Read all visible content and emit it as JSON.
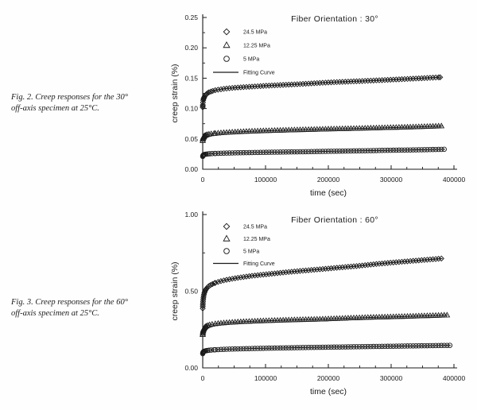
{
  "page": {
    "ink_color": "#1a1a1a",
    "background": "#fefefe"
  },
  "captions": {
    "fig2": {
      "line1": "Fig. 2.  Creep responses for the 30°",
      "line2": "off-axis specimen at 25°C."
    },
    "fig3": {
      "line1": "Fig. 3.  Creep responses for the 60°",
      "line2": "off-axis specimen at 25°C."
    }
  },
  "chart_data": [
    {
      "type": "scatter",
      "title": "Fiber Orientation : 30°",
      "xlabel": "time (sec)",
      "ylabel": "creep strain (%)",
      "xlim": [
        0,
        400000
      ],
      "ylim": [
        0,
        0.25
      ],
      "grid": false,
      "legend_position": "upper-left",
      "ink": "#1a1a1a",
      "x_ticks": {
        "values": [
          0,
          100000,
          200000,
          300000,
          400000
        ],
        "labels": [
          "0",
          "100000",
          "200000",
          "300000",
          "400000"
        ],
        "minor_step": 25000
      },
      "y_ticks": {
        "values": [
          0,
          0.05,
          0.1,
          0.15,
          0.2,
          0.25
        ],
        "labels": [
          "0.00",
          "0.05",
          "0.10",
          "0.15",
          "0.20",
          "0.25"
        ],
        "minor_step": 0.025
      },
      "legend": [
        {
          "marker": "diamond",
          "label": "24.5 MPa"
        },
        {
          "marker": "triangle",
          "label": "12.25 MPa"
        },
        {
          "marker": "circle",
          "label": "5 MPa"
        },
        {
          "marker": "line",
          "label": "Fitting Curve"
        }
      ],
      "series": [
        {
          "name": "24.5 MPa",
          "marker": "diamond",
          "points": [
            [
              0,
              0.102
            ],
            [
              100,
              0.104
            ],
            [
              200,
              0.106
            ],
            [
              400,
              0.11
            ],
            [
              800,
              0.1135
            ],
            [
              1200,
              0.1155
            ],
            [
              1700,
              0.117
            ],
            [
              2300,
              0.1185
            ],
            [
              3000,
              0.12
            ],
            [
              4000,
              0.1215
            ],
            [
              5000,
              0.1228
            ],
            [
              6500,
              0.1243
            ],
            [
              8000,
              0.1255
            ],
            [
              10000,
              0.1268
            ],
            [
              13000,
              0.128
            ],
            [
              16000,
              0.129
            ],
            [
              20000,
              0.1302
            ],
            [
              26000,
              0.1313
            ],
            [
              33000,
              0.1324
            ],
            [
              42000,
              0.1334
            ],
            [
              52000,
              0.1344
            ],
            [
              65000,
              0.1353
            ],
            [
              80000,
              0.1362
            ],
            [
              100000,
              0.1375
            ],
            [
              125000,
              0.1388
            ],
            [
              150000,
              0.14
            ],
            [
              175000,
              0.1415
            ],
            [
              200000,
              0.143
            ],
            [
              230000,
              0.1443
            ],
            [
              260000,
              0.1456
            ],
            [
              290000,
              0.147
            ],
            [
              320000,
              0.1485
            ],
            [
              350000,
              0.15
            ],
            [
              378000,
              0.1515
            ]
          ]
        },
        {
          "name": "12.25 MPa",
          "marker": "triangle",
          "points": [
            [
              0,
              0.047
            ],
            [
              200,
              0.0492
            ],
            [
              500,
              0.0511
            ],
            [
              900,
              0.0524
            ],
            [
              1400,
              0.0533
            ],
            [
              2000,
              0.0541
            ],
            [
              2800,
              0.0549
            ],
            [
              4000,
              0.0556
            ],
            [
              5500,
              0.0563
            ],
            [
              7500,
              0.057
            ],
            [
              10000,
              0.0576
            ],
            [
              13500,
              0.0582
            ],
            [
              18000,
              0.0588
            ],
            [
              24000,
              0.0594
            ],
            [
              32000,
              0.0601
            ],
            [
              42000,
              0.0608
            ],
            [
              55000,
              0.0615
            ],
            [
              72000,
              0.0623
            ],
            [
              92000,
              0.063
            ],
            [
              115000,
              0.0638
            ],
            [
              140000,
              0.0645
            ],
            [
              170000,
              0.0653
            ],
            [
              200000,
              0.0661
            ],
            [
              235000,
              0.0669
            ],
            [
              270000,
              0.0678
            ],
            [
              305000,
              0.0687
            ],
            [
              340000,
              0.0697
            ],
            [
              382000,
              0.0712
            ]
          ]
        },
        {
          "name": "5 MPa",
          "marker": "circle",
          "points": [
            [
              0,
              0.0212
            ],
            [
              300,
              0.0222
            ],
            [
              700,
              0.023
            ],
            [
              1300,
              0.0236
            ],
            [
              2200,
              0.0241
            ],
            [
              3500,
              0.0245
            ],
            [
              5500,
              0.0249
            ],
            [
              8000,
              0.0252
            ],
            [
              11000,
              0.0255
            ],
            [
              15000,
              0.0258
            ],
            [
              19500,
              0.026
            ],
            [
              26000,
              0.0263
            ],
            [
              35000,
              0.0266
            ],
            [
              47000,
              0.0269
            ],
            [
              62000,
              0.0272
            ],
            [
              80000,
              0.0276
            ],
            [
              100000,
              0.0279
            ],
            [
              125000,
              0.0283
            ],
            [
              150000,
              0.0287
            ],
            [
              180000,
              0.0292
            ],
            [
              210000,
              0.0297
            ],
            [
              240000,
              0.0302
            ],
            [
              270000,
              0.0307
            ],
            [
              300000,
              0.0313
            ],
            [
              330000,
              0.0318
            ],
            [
              358000,
              0.0323
            ],
            [
              386000,
              0.0329
            ]
          ]
        }
      ]
    },
    {
      "type": "scatter",
      "title": "Fiber Orientation : 60°",
      "xlabel": "time (sec)",
      "ylabel": "creep strain (%)",
      "xlim": [
        0,
        400000
      ],
      "ylim": [
        0,
        1.0
      ],
      "grid": false,
      "legend_position": "upper-left",
      "ink": "#1a1a1a",
      "x_ticks": {
        "values": [
          0,
          100000,
          200000,
          300000,
          400000
        ],
        "labels": [
          "0",
          "100000",
          "200000",
          "300000",
          "400000"
        ],
        "minor_step": 25000
      },
      "y_ticks": {
        "values": [
          0,
          0.5,
          1.0
        ],
        "labels": [
          "0.00",
          "0.50",
          "1.00"
        ],
        "minor_step": 0.25
      },
      "legend": [
        {
          "marker": "diamond",
          "label": "24.5 MPa"
        },
        {
          "marker": "triangle",
          "label": "12.25 MPa"
        },
        {
          "marker": "circle",
          "label": "5 MPa"
        },
        {
          "marker": "line",
          "label": "Fitting Curve"
        }
      ],
      "series": [
        {
          "name": "24.5 MPa",
          "marker": "diamond",
          "points": [
            [
              0,
              0.388
            ],
            [
              100,
              0.401
            ],
            [
              200,
              0.411
            ],
            [
              350,
              0.422
            ],
            [
              550,
              0.434
            ],
            [
              800,
              0.446
            ],
            [
              1100,
              0.457
            ],
            [
              1500,
              0.468
            ],
            [
              2000,
              0.479
            ],
            [
              2600,
              0.489
            ],
            [
              3300,
              0.4975
            ],
            [
              4200,
              0.5055
            ],
            [
              5300,
              0.513
            ],
            [
              6600,
              0.52
            ],
            [
              8200,
              0.527
            ],
            [
              10000,
              0.5335
            ],
            [
              12500,
              0.54
            ],
            [
              15500,
              0.5465
            ],
            [
              19000,
              0.553
            ],
            [
              24000,
              0.56
            ],
            [
              30000,
              0.567
            ],
            [
              38000,
              0.5745
            ],
            [
              48000,
              0.582
            ],
            [
              60000,
              0.59
            ],
            [
              75000,
              0.5985
            ],
            [
              92000,
              0.6065
            ],
            [
              112000,
              0.615
            ],
            [
              135000,
              0.6245
            ],
            [
              160000,
              0.634
            ],
            [
              188000,
              0.6435
            ],
            [
              218000,
              0.6545
            ],
            [
              248000,
              0.665
            ],
            [
              278000,
              0.678
            ],
            [
              308000,
              0.689
            ],
            [
              338000,
              0.699
            ],
            [
              368000,
              0.709
            ],
            [
              382000,
              0.714
            ]
          ]
        },
        {
          "name": "12.25 MPa",
          "marker": "triangle",
          "points": [
            [
              0,
              0.216
            ],
            [
              150,
              0.225
            ],
            [
              350,
              0.2335
            ],
            [
              650,
              0.241
            ],
            [
              1000,
              0.247
            ],
            [
              1500,
              0.2525
            ],
            [
              2200,
              0.258
            ],
            [
              3100,
              0.263
            ],
            [
              4300,
              0.2675
            ],
            [
              6000,
              0.272
            ],
            [
              8200,
              0.2763
            ],
            [
              11000,
              0.28
            ],
            [
              15000,
              0.2838
            ],
            [
              20000,
              0.2872
            ],
            [
              27000,
              0.2906
            ],
            [
              36000,
              0.294
            ],
            [
              48000,
              0.2974
            ],
            [
              63000,
              0.3008
            ],
            [
              82000,
              0.3042
            ],
            [
              105000,
              0.3077
            ],
            [
              132000,
              0.3112
            ],
            [
              162000,
              0.3147
            ],
            [
              195000,
              0.3182
            ],
            [
              230000,
              0.324
            ],
            [
              267000,
              0.329
            ],
            [
              305000,
              0.333
            ],
            [
              345000,
              0.338
            ],
            [
              390000,
              0.344
            ]
          ]
        },
        {
          "name": "5 MPa",
          "marker": "circle",
          "points": [
            [
              0,
              0.093
            ],
            [
              200,
              0.0975
            ],
            [
              500,
              0.101
            ],
            [
              900,
              0.1038
            ],
            [
              1500,
              0.1062
            ],
            [
              2400,
              0.1084
            ],
            [
              3600,
              0.1103
            ],
            [
              5200,
              0.112
            ],
            [
              7300,
              0.1136
            ],
            [
              10000,
              0.1151
            ],
            [
              13500,
              0.1165
            ],
            [
              18000,
              0.1179
            ],
            [
              24000,
              0.1193
            ],
            [
              32000,
              0.1208
            ],
            [
              42000,
              0.1223
            ],
            [
              55000,
              0.1239
            ],
            [
              71000,
              0.1256
            ],
            [
              90000,
              0.1273
            ],
            [
              113000,
              0.1292
            ],
            [
              139000,
              0.1311
            ],
            [
              168000,
              0.1331
            ],
            [
              200000,
              0.1352
            ],
            [
              235000,
              0.1374
            ],
            [
              272000,
              0.1396
            ],
            [
              310000,
              0.1419
            ],
            [
              350000,
              0.1443
            ],
            [
              395000,
              0.147
            ]
          ]
        }
      ]
    }
  ]
}
